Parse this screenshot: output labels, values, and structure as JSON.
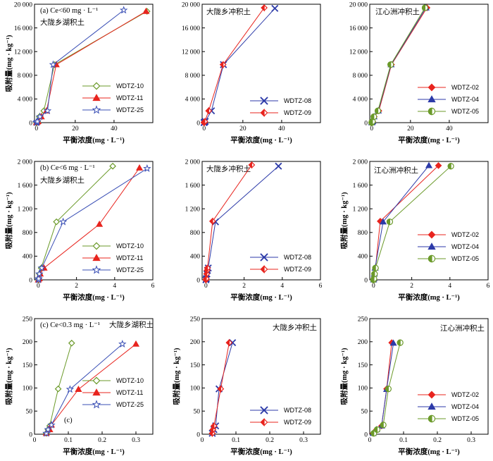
{
  "chart_data": [
    {
      "type": "line",
      "annotations": [
        "(a) Ce<60 mg · L⁻¹",
        "大陇乡湖积土"
      ],
      "xlabel": "平衡浓度(mg · L⁻¹)",
      "ylabel": "吸附量(mg · kg⁻¹)",
      "xlim": [
        -1,
        60
      ],
      "ylim": [
        0,
        20000
      ],
      "xticks": [
        0,
        20,
        40
      ],
      "xtick_labels": [
        "0",
        "20",
        "40"
      ],
      "yticks": [
        0,
        4000,
        8000,
        12000,
        16000,
        20000
      ],
      "ytick_labels": [
        "0",
        "4 000",
        "8 000",
        "12 000",
        "16 000",
        "20 000"
      ],
      "legend_position": "lower-right",
      "series": [
        {
          "name": "WDTZ-10",
          "color": "#6b9a2a",
          "marker": "diamond-open",
          "x": [
            0,
            0.05,
            0.2,
            0.6,
            1.5,
            3.8,
            9.3,
            57
          ],
          "y": [
            0,
            20,
            100,
            200,
            1000,
            2000,
            9800,
            18800
          ]
        },
        {
          "name": "WDTZ-11",
          "color": "#e8241e",
          "marker": "triangle-filled",
          "x": [
            0,
            0.1,
            0.3,
            0.8,
            2.5,
            5.2,
            10.2,
            56.5
          ],
          "y": [
            0,
            20,
            100,
            200,
            1000,
            2000,
            9800,
            18800
          ]
        },
        {
          "name": "WDTZ-25",
          "color": "#3a4fb5",
          "marker": "star-open",
          "x": [
            0,
            0.05,
            0.15,
            0.5,
            1.8,
            5.7,
            8.6,
            45
          ],
          "y": [
            0,
            20,
            100,
            200,
            1000,
            2000,
            9800,
            19000
          ]
        }
      ]
    },
    {
      "type": "line",
      "annotations": [
        "大陇乡冲积土"
      ],
      "xlabel": "平衡浓度(mg · L⁻¹)",
      "ylabel": "",
      "xlim": [
        -1,
        60
      ],
      "ylim": [
        0,
        20000
      ],
      "xticks": [
        0,
        20,
        40
      ],
      "xtick_labels": [
        "0",
        "20",
        "40"
      ],
      "yticks": [
        0,
        4000,
        8000,
        12000,
        16000,
        20000
      ],
      "ytick_labels": [
        "0",
        "4 000",
        "8 000",
        "12 000",
        "16 000",
        "20 000"
      ],
      "legend_position": "lower-right",
      "series": [
        {
          "name": "WDTZ-08",
          "color": "#2c3aa8",
          "marker": "x",
          "x": [
            0,
            0.05,
            0.2,
            0.6,
            3.8,
            10,
            36.5
          ],
          "y": [
            0,
            20,
            100,
            200,
            2000,
            9800,
            19300
          ]
        },
        {
          "name": "WDTZ-09",
          "color": "#e8241e",
          "marker": "diamond-half",
          "x": [
            0,
            0.05,
            0.1,
            0.4,
            2.4,
            9.8,
            31
          ],
          "y": [
            0,
            20,
            100,
            200,
            2000,
            9800,
            19400
          ]
        }
      ]
    },
    {
      "type": "line",
      "annotations": [
        "江心洲冲积土"
      ],
      "xlabel": "平衡浓度(mg · L⁻¹)",
      "ylabel": "",
      "xlim": [
        -1,
        60
      ],
      "ylim": [
        0,
        20000
      ],
      "xticks": [
        0,
        20,
        40
      ],
      "xtick_labels": [
        "0",
        "20",
        "40"
      ],
      "yticks": [
        0,
        4000,
        8000,
        12000,
        16000,
        20000
      ],
      "ytick_labels": [
        "0",
        "4 000",
        "8 000",
        "12 000",
        "16 000",
        "20 000"
      ],
      "legend_position": "lower-right",
      "series": [
        {
          "name": "WDTZ-02",
          "color": "#e8241e",
          "marker": "diamond-filled",
          "x": [
            0,
            0.05,
            0.2,
            0.5,
            1.3,
            3.7,
            10.2,
            28.5
          ],
          "y": [
            0,
            20,
            100,
            200,
            1000,
            2000,
            9800,
            19400
          ]
        },
        {
          "name": "WDTZ-04",
          "color": "#2c3aa8",
          "marker": "triangle-filled",
          "x": [
            0,
            0.05,
            0.2,
            0.5,
            1.2,
            3.4,
            10,
            28
          ],
          "y": [
            0,
            20,
            100,
            200,
            1000,
            2000,
            9800,
            19400
          ]
        },
        {
          "name": "WDTZ-05",
          "color": "#6b9a2a",
          "marker": "circle-half",
          "x": [
            0,
            0.05,
            0.1,
            0.4,
            1.1,
            3.2,
            9.8,
            27.5
          ],
          "y": [
            0,
            20,
            100,
            200,
            1000,
            2000,
            9800,
            19400
          ]
        }
      ]
    },
    {
      "type": "line",
      "annotations": [
        "(b) Ce<6 mg · L⁻¹",
        "大陇乡湖积土"
      ],
      "xlabel": "平衡浓度(mg · L⁻¹)",
      "ylabel": "吸附量(mg · kg⁻¹)",
      "xlim": [
        -0.2,
        6
      ],
      "ylim": [
        0,
        2000
      ],
      "xticks": [
        0,
        2,
        4,
        6
      ],
      "xtick_labels": [
        "0",
        "2",
        "4",
        "6"
      ],
      "yticks": [
        0,
        400,
        800,
        1200,
        1600,
        2000
      ],
      "ytick_labels": [
        "0",
        "400",
        "800",
        "1 200",
        "1 600",
        "2 000"
      ],
      "legend_position": "lower-right",
      "series": [
        {
          "name": "WDTZ-10",
          "color": "#6b9a2a",
          "marker": "diamond-open",
          "x": [
            0,
            0.02,
            0.06,
            0.15,
            0.95,
            3.9
          ],
          "y": [
            0,
            20,
            100,
            200,
            980,
            1920
          ]
        },
        {
          "name": "WDTZ-11",
          "color": "#e8241e",
          "marker": "triangle-filled",
          "x": [
            0,
            0.05,
            0.1,
            0.3,
            3.2,
            5.3
          ],
          "y": [
            0,
            20,
            100,
            200,
            940,
            1890
          ]
        },
        {
          "name": "WDTZ-25",
          "color": "#3a4fb5",
          "marker": "star-open",
          "x": [
            0,
            0.02,
            0.05,
            0.18,
            1.3,
            5.7
          ],
          "y": [
            0,
            20,
            100,
            200,
            980,
            1880
          ]
        }
      ]
    },
    {
      "type": "line",
      "annotations": [
        "大陇乡冲积土"
      ],
      "xlabel": "平衡浓度(mg · L⁻¹)",
      "ylabel": "",
      "xlim": [
        -0.2,
        6
      ],
      "ylim": [
        0,
        2000
      ],
      "xticks": [
        0,
        2,
        4,
        6
      ],
      "xtick_labels": [
        "0",
        "2",
        "4",
        "6"
      ],
      "yticks": [
        0,
        400,
        800,
        1200,
        1600,
        2000
      ],
      "ytick_labels": [
        "0",
        "400",
        "800",
        "1 200",
        "1 600",
        "2 000"
      ],
      "legend_position": "lower-right",
      "series": [
        {
          "name": "WDTZ-08",
          "color": "#2c3aa8",
          "marker": "x",
          "x": [
            0,
            0.02,
            0.05,
            0.08,
            0.12,
            0.5,
            3.8
          ],
          "y": [
            0,
            20,
            100,
            160,
            200,
            980,
            1920
          ]
        },
        {
          "name": "WDTZ-09",
          "color": "#e8241e",
          "marker": "diamond-half",
          "x": [
            0,
            0.02,
            0.04,
            0.06,
            0.08,
            0.35,
            2.4
          ],
          "y": [
            0,
            20,
            100,
            160,
            200,
            990,
            1940
          ]
        }
      ]
    },
    {
      "type": "line",
      "annotations": [
        "江心洲冲积土"
      ],
      "xlabel": "平衡浓度(mg · L⁻¹)",
      "ylabel": "吸附量(mg · kg⁻¹)",
      "xlim": [
        -0.2,
        6
      ],
      "ylim": [
        0,
        2000
      ],
      "xticks": [
        0,
        2,
        4,
        6
      ],
      "xtick_labels": [
        "0",
        "2",
        "4",
        "6"
      ],
      "yticks": [
        0,
        400,
        800,
        1200,
        1600,
        2000
      ],
      "ytick_labels": [
        "0",
        "400",
        "800",
        "1 200",
        "1 600",
        "2 000"
      ],
      "legend_position": "lower-right",
      "series": [
        {
          "name": "WDTZ-02",
          "color": "#e8241e",
          "marker": "diamond-filled",
          "x": [
            0,
            0.02,
            0.05,
            0.1,
            0.35,
            3.4
          ],
          "y": [
            0,
            20,
            100,
            200,
            990,
            1930
          ]
        },
        {
          "name": "WDTZ-04",
          "color": "#2c3aa8",
          "marker": "triangle-filled",
          "x": [
            0,
            0.02,
            0.04,
            0.08,
            0.5,
            2.9
          ],
          "y": [
            0,
            20,
            100,
            200,
            980,
            1930
          ]
        },
        {
          "name": "WDTZ-05",
          "color": "#6b9a2a",
          "marker": "circle-half",
          "x": [
            0,
            0.02,
            0.05,
            0.1,
            0.85,
            4.05
          ],
          "y": [
            0,
            20,
            100,
            200,
            980,
            1920
          ]
        }
      ]
    },
    {
      "type": "line",
      "annotations": [
        "(c) Ce<0.3 mg · L⁻¹",
        "大陇乡湖积土",
        "(c)"
      ],
      "xlabel": "平衡浓度(mg · L⁻¹)",
      "ylabel": "吸附量(mg · kg⁻¹)",
      "xlim": [
        0,
        0.35
      ],
      "ylim": [
        0,
        250
      ],
      "xticks": [
        0,
        0.1,
        0.2,
        0.3
      ],
      "xtick_labels": [
        "0",
        "0.1",
        "0.2",
        "0.3"
      ],
      "yticks": [
        0,
        50,
        100,
        150,
        200,
        250
      ],
      "ytick_labels": [
        "0",
        "50",
        "100",
        "150",
        "200",
        "250"
      ],
      "legend_position": "lower-right",
      "series": [
        {
          "name": "WDTZ-10",
          "color": "#6b9a2a",
          "marker": "diamond-open",
          "x": [
            0.035,
            0.04,
            0.045,
            0.07,
            0.11
          ],
          "y": [
            2,
            10,
            18,
            98,
            197
          ]
        },
        {
          "name": "WDTZ-11",
          "color": "#e8241e",
          "marker": "triangle-filled",
          "x": [
            0.035,
            0.045,
            0.05,
            0.13,
            0.3
          ],
          "y": [
            2,
            10,
            20,
            97,
            195
          ]
        },
        {
          "name": "WDTZ-25",
          "color": "#3a4fb5",
          "marker": "star-open",
          "x": [
            0.035,
            0.04,
            0.05,
            0.105,
            0.26
          ],
          "y": [
            2,
            10,
            20,
            97,
            195
          ]
        }
      ]
    },
    {
      "type": "line",
      "annotations": [
        "大陇乡冲积土"
      ],
      "xlabel": "平衡浓度(mg · L⁻¹)",
      "ylabel": "吸附量(mg · kg⁻¹)",
      "xlim": [
        0,
        0.35
      ],
      "ylim": [
        0,
        250
      ],
      "xticks": [
        0,
        0.1,
        0.2,
        0.3
      ],
      "xtick_labels": [
        "0",
        "0.1",
        "0.2",
        "0.3"
      ],
      "yticks": [
        0,
        50,
        100,
        150,
        200,
        250
      ],
      "ytick_labels": [
        "0",
        "50",
        "100",
        "150",
        "200",
        "250"
      ],
      "legend_position": "lower-right",
      "series": [
        {
          "name": "WDTZ-08",
          "color": "#2c3aa8",
          "marker": "x",
          "x": [
            0.03,
            0.035,
            0.04,
            0.05,
            0.09
          ],
          "y": [
            2,
            10,
            18,
            98,
            198
          ]
        },
        {
          "name": "WDTZ-09",
          "color": "#e8241e",
          "marker": "diamond-half",
          "x": [
            0.03,
            0.032,
            0.035,
            0.055,
            0.08
          ],
          "y": [
            2,
            10,
            18,
            98,
            198
          ]
        }
      ]
    },
    {
      "type": "line",
      "annotations": [
        "江心洲冲积土"
      ],
      "xlabel": "平衡浓度(mg · L⁻¹)",
      "ylabel": "吸附量(mg · kg⁻¹)",
      "xlim": [
        0,
        0.35
      ],
      "ylim": [
        0,
        250
      ],
      "xticks": [
        0,
        0.1,
        0.2,
        0.3
      ],
      "xtick_labels": [
        "0",
        "0.1",
        "0.2",
        "0.3"
      ],
      "yticks": [
        0,
        50,
        100,
        150,
        200,
        250
      ],
      "ytick_labels": [
        "0",
        "50",
        "100",
        "150",
        "200",
        "250"
      ],
      "legend_position": "lower-right",
      "series": [
        {
          "name": "WDTZ-02",
          "color": "#e8241e",
          "marker": "diamond-filled",
          "x": [
            0.01,
            0.02,
            0.035,
            0.05,
            0.065
          ],
          "y": [
            2,
            10,
            18,
            98,
            198
          ]
        },
        {
          "name": "WDTZ-04",
          "color": "#2c3aa8",
          "marker": "triangle-filled",
          "x": [
            0.01,
            0.02,
            0.035,
            0.05,
            0.07
          ],
          "y": [
            2,
            10,
            18,
            97,
            197
          ]
        },
        {
          "name": "WDTZ-05",
          "color": "#6b9a2a",
          "marker": "circle-half",
          "x": [
            0.012,
            0.022,
            0.04,
            0.055,
            0.09
          ],
          "y": [
            2,
            10,
            20,
            98,
            198
          ]
        }
      ]
    }
  ]
}
